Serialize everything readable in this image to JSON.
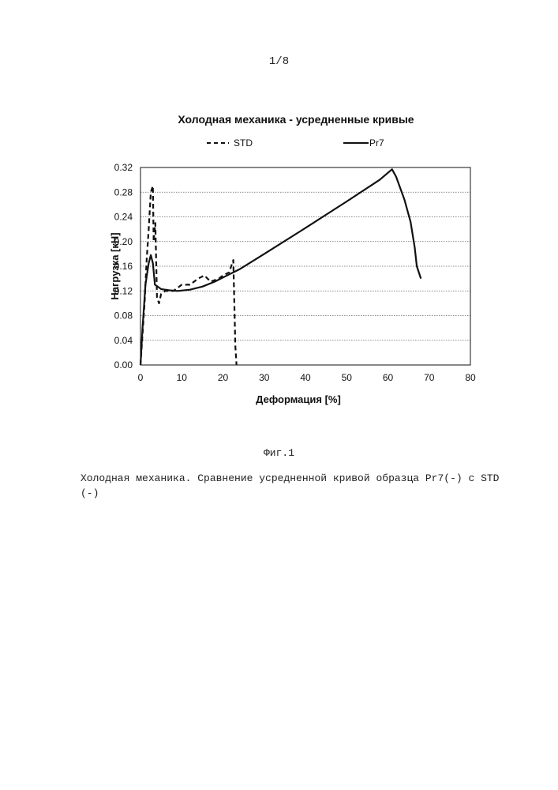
{
  "page": {
    "number": "1/8",
    "figure_label": "Фиг.1",
    "caption": "Холодная механика. Сравнение усредненной кривой образца Pr7(-) с STD (-)"
  },
  "chart_data": {
    "type": "line",
    "title": "Холодная механика - усредненные кривые",
    "xlabel": "Деформация [%]",
    "ylabel": "Нагрузка [кН]",
    "xlim": [
      0,
      80
    ],
    "ylim": [
      0,
      0.32
    ],
    "x_ticks": [
      "0",
      "10",
      "20",
      "30",
      "40",
      "50",
      "60",
      "70",
      "80"
    ],
    "y_ticks": [
      "0.00",
      "0.04",
      "0.08",
      "0.12",
      "0.16",
      "0.20",
      "0.24",
      "0.28",
      "0.32"
    ],
    "grid": "horizontal",
    "legend_position": "top",
    "series": [
      {
        "name": "STD",
        "style": "dashed",
        "color": "#111111",
        "points": [
          [
            0,
            0
          ],
          [
            1,
            0.1
          ],
          [
            1.5,
            0.17
          ],
          [
            2,
            0.22
          ],
          [
            2.5,
            0.28
          ],
          [
            3,
            0.29
          ],
          [
            3.2,
            0.2
          ],
          [
            3.6,
            0.23
          ],
          [
            4,
            0.11
          ],
          [
            4.5,
            0.1
          ],
          [
            5,
            0.115
          ],
          [
            6,
            0.12
          ],
          [
            8,
            0.12
          ],
          [
            10,
            0.13
          ],
          [
            12,
            0.13
          ],
          [
            14,
            0.14
          ],
          [
            15.5,
            0.145
          ],
          [
            17,
            0.135
          ],
          [
            19,
            0.14
          ],
          [
            20,
            0.145
          ],
          [
            21.5,
            0.15
          ],
          [
            22.5,
            0.17
          ],
          [
            23,
            0.03
          ],
          [
            23.3,
            0.0
          ]
        ]
      },
      {
        "name": "Pr7",
        "style": "solid",
        "color": "#111111",
        "points": [
          [
            0,
            0
          ],
          [
            0.5,
            0.06
          ],
          [
            1.2,
            0.13
          ],
          [
            2,
            0.165
          ],
          [
            2.5,
            0.178
          ],
          [
            3,
            0.165
          ],
          [
            3.5,
            0.13
          ],
          [
            5,
            0.123
          ],
          [
            7,
            0.121
          ],
          [
            9,
            0.12
          ],
          [
            12,
            0.122
          ],
          [
            15,
            0.127
          ],
          [
            18,
            0.135
          ],
          [
            21,
            0.145
          ],
          [
            24,
            0.155
          ],
          [
            30,
            0.18
          ],
          [
            40,
            0.222
          ],
          [
            50,
            0.265
          ],
          [
            58,
            0.3
          ],
          [
            61,
            0.317
          ],
          [
            62,
            0.305
          ],
          [
            64,
            0.268
          ],
          [
            65.5,
            0.232
          ],
          [
            66.5,
            0.19
          ],
          [
            67,
            0.16
          ],
          [
            68,
            0.14
          ]
        ]
      }
    ]
  }
}
